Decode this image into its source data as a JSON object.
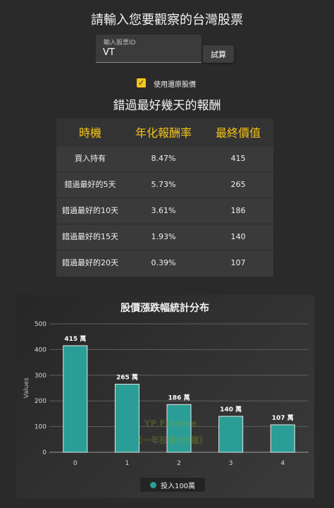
{
  "page": {
    "title": "請輸入您要觀察的台灣股票"
  },
  "stock_input": {
    "label": "輸入股票ID",
    "value": "VT"
  },
  "calc_button": {
    "label": "試算"
  },
  "adjusted_price": {
    "checked": true,
    "check_glyph": "✓",
    "label": "使用還原股價"
  },
  "results": {
    "title": "錯過最好幾天的報酬",
    "headers": [
      "時機",
      "年化報酬率",
      "最終價值"
    ],
    "rows": [
      [
        "買入持有",
        "8.47%",
        "415"
      ],
      [
        "錯過最好的5天",
        "5.73%",
        "265"
      ],
      [
        "錯過最好的10天",
        "3.61%",
        "186"
      ],
      [
        "錯過最好的15天",
        "1.93%",
        "140"
      ],
      [
        "錯過最好的20天",
        "0.39%",
        "107"
      ]
    ]
  },
  "chart_data": {
    "type": "bar",
    "title": "股價漲跌幅統計分布",
    "xlabel": "",
    "ylabel": "Values",
    "categories": [
      "0",
      "1",
      "2",
      "3",
      "4"
    ],
    "ylim": [
      0,
      500
    ],
    "yticks": [
      0,
      100,
      200,
      300,
      400,
      500
    ],
    "grid": true,
    "legend_position": "bottom",
    "series": [
      {
        "name": "投入100萬",
        "values": [
          415,
          265,
          186,
          140,
          107
        ],
        "labels": [
          "415 萬",
          "265 萬",
          "186 萬",
          "140 萬",
          "107 萬"
        ],
        "color": "#2a9d96"
      }
    ],
    "watermark": [
      "YP Finance",
      "《一年投資5分鐘》"
    ]
  },
  "colors": {
    "background": "#2a2a2a",
    "accent": "#f5c518",
    "bar": "#2a9d96",
    "bar_border": "#e8e8e8"
  }
}
